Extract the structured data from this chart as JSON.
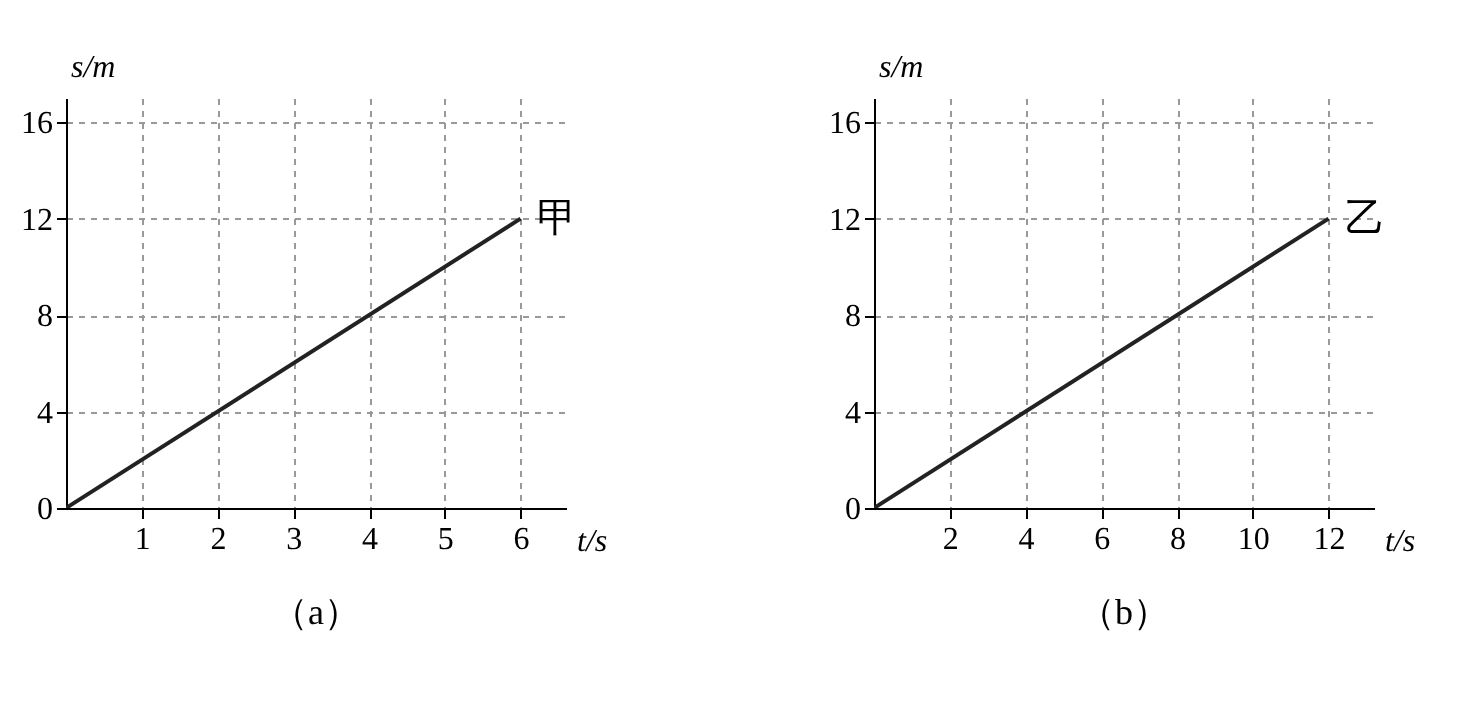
{
  "chart_data": [
    {
      "type": "line",
      "title": "（a）",
      "xlabel": "t/s",
      "ylabel": "s/m",
      "x": [
        0,
        6
      ],
      "series": [
        {
          "color": "#222222",
          "values": [
            0,
            12
          ]
        }
      ],
      "xlim": [
        0,
        6.6
      ],
      "ylim": [
        0,
        17
      ],
      "xticks": [
        1,
        2,
        3,
        4,
        5,
        6
      ],
      "yticks": [
        0,
        4,
        8,
        12,
        16
      ],
      "grid": true,
      "annotations": [
        {
          "text": "甲",
          "x": 6,
          "y": 12
        }
      ]
    },
    {
      "type": "line",
      "title": "（b）",
      "xlabel": "t/s",
      "ylabel": "s/m",
      "x": [
        0,
        12
      ],
      "series": [
        {
          "color": "#222222",
          "values": [
            0,
            12
          ]
        }
      ],
      "xlim": [
        0,
        13.2
      ],
      "ylim": [
        0,
        17
      ],
      "xticks": [
        2,
        4,
        6,
        8,
        10,
        12
      ],
      "yticks": [
        0,
        4,
        8,
        12,
        16
      ],
      "grid": true,
      "annotations": [
        {
          "text": "乙",
          "x": 12,
          "y": 12
        }
      ]
    }
  ]
}
